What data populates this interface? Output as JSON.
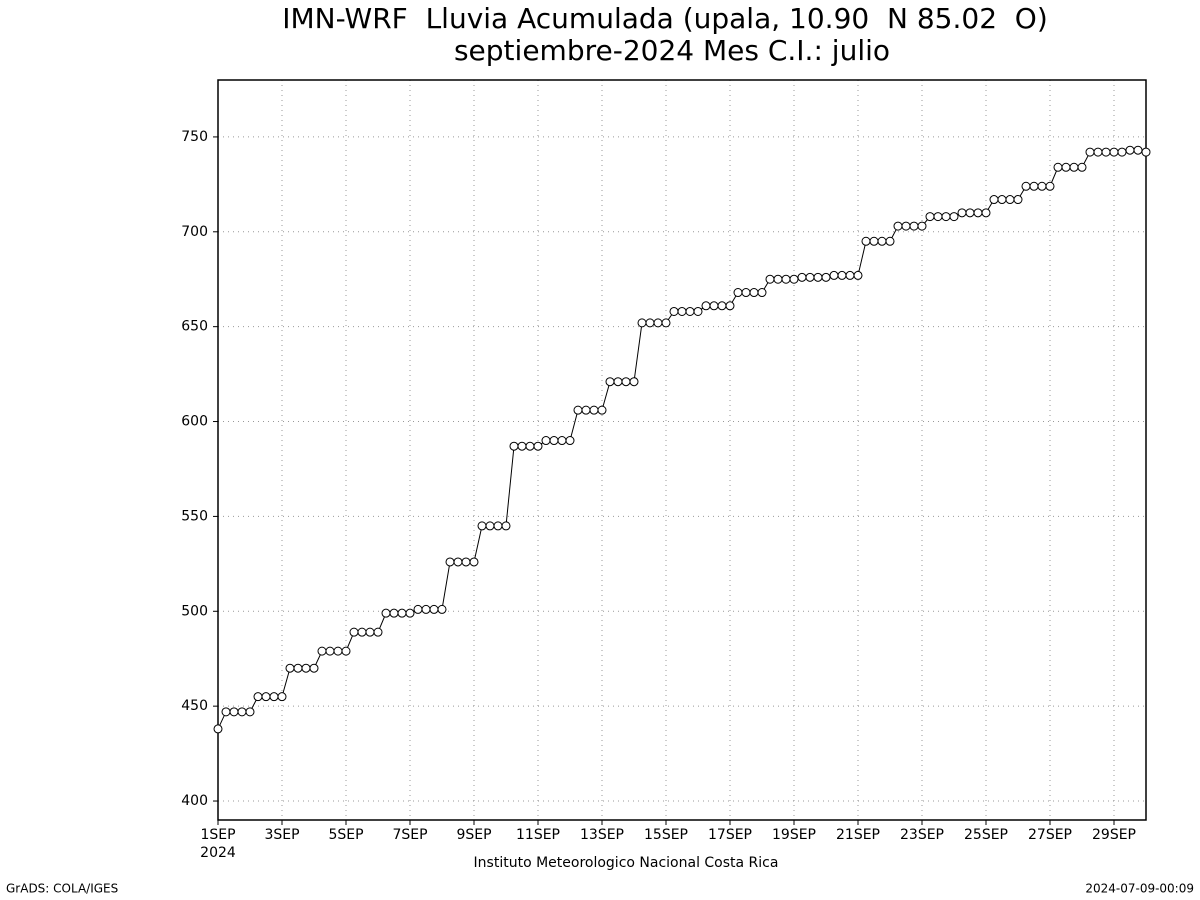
{
  "chart_data": {
    "type": "line",
    "title": "IMN-WRF  Lluvia Acumulada (upala, 10.90  N 85.02  O)",
    "subtitle": "septiembre-2024 Mes C.I.: julio",
    "x_axis_year": "2024",
    "x_label": "Instituto Meteorologico Nacional Costa Rica",
    "footer_left": "GrADS: COLA/IGES",
    "footer_right": "2024-07-09-00:09",
    "x": [
      0,
      0.25,
      0.5,
      0.75,
      1,
      1.25,
      1.5,
      1.75,
      2,
      2.25,
      2.5,
      2.75,
      3,
      3.25,
      3.5,
      3.75,
      4,
      4.25,
      4.5,
      4.75,
      5,
      5.25,
      5.5,
      5.75,
      6,
      6.25,
      6.5,
      6.75,
      7,
      7.25,
      7.5,
      7.75,
      8,
      8.25,
      8.5,
      8.75,
      9,
      9.25,
      9.5,
      9.75,
      10,
      10.25,
      10.5,
      10.75,
      11,
      11.25,
      11.5,
      11.75,
      12,
      12.25,
      12.5,
      12.75,
      13,
      13.25,
      13.5,
      13.75,
      14,
      14.25,
      14.5,
      14.75,
      15,
      15.25,
      15.5,
      15.75,
      16,
      16.25,
      16.5,
      16.75,
      17,
      17.25,
      17.5,
      17.75,
      18,
      18.25,
      18.5,
      18.75,
      19,
      19.25,
      19.5,
      19.75,
      20,
      20.25,
      20.5,
      20.75,
      21,
      21.25,
      21.5,
      21.75,
      22,
      22.25,
      22.5,
      22.75,
      23,
      23.25,
      23.5,
      23.75,
      24,
      24.25,
      24.5,
      24.75,
      25,
      25.25,
      25.5,
      25.75,
      26,
      26.25,
      26.5,
      26.75,
      27,
      27.25,
      27.5,
      27.75,
      28,
      28.25,
      28.5,
      28.75,
      29
    ],
    "series": [
      {
        "color": "#000000",
        "values": [
          438,
          447,
          447,
          447,
          447,
          455,
          455,
          455,
          455,
          470,
          470,
          470,
          470,
          479,
          479,
          479,
          479,
          489,
          489,
          489,
          489,
          499,
          499,
          499,
          499,
          501,
          501,
          501,
          501,
          526,
          526,
          526,
          526,
          545,
          545,
          545,
          545,
          587,
          587,
          587,
          587,
          590,
          590,
          590,
          590,
          606,
          606,
          606,
          606,
          621,
          621,
          621,
          621,
          652,
          652,
          652,
          652,
          658,
          658,
          658,
          658,
          661,
          661,
          661,
          661,
          668,
          668,
          668,
          668,
          675,
          675,
          675,
          675,
          676,
          676,
          676,
          676,
          677,
          677,
          677,
          677,
          695,
          695,
          695,
          695,
          703,
          703,
          703,
          703,
          708,
          708,
          708,
          708,
          710,
          710,
          710,
          710,
          717,
          717,
          717,
          717,
          724,
          724,
          724,
          724,
          734,
          734,
          734,
          734,
          742,
          742,
          742,
          742,
          742,
          743,
          743,
          742
        ]
      }
    ],
    "xlim": [
      0,
      29
    ],
    "xticks": [
      {
        "value": 0,
        "label": "1SEP"
      },
      {
        "value": 2,
        "label": "3SEP"
      },
      {
        "value": 4,
        "label": "5SEP"
      },
      {
        "value": 6,
        "label": "7SEP"
      },
      {
        "value": 8,
        "label": "9SEP"
      },
      {
        "value": 10,
        "label": "11SEP"
      },
      {
        "value": 12,
        "label": "13SEP"
      },
      {
        "value": 14,
        "label": "15SEP"
      },
      {
        "value": 16,
        "label": "17SEP"
      },
      {
        "value": 18,
        "label": "19SEP"
      },
      {
        "value": 20,
        "label": "21SEP"
      },
      {
        "value": 22,
        "label": "23SEP"
      },
      {
        "value": 24,
        "label": "25SEP"
      },
      {
        "value": 26,
        "label": "27SEP"
      },
      {
        "value": 28,
        "label": "29SEP"
      }
    ],
    "ylim": [
      390,
      780
    ],
    "yticks": [
      400,
      450,
      500,
      550,
      600,
      650,
      700,
      750
    ],
    "grid": true
  }
}
